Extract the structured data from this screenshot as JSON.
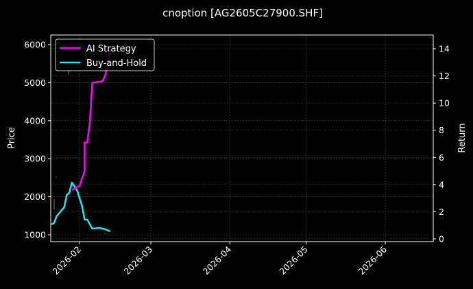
{
  "chart_data": {
    "type": "line",
    "title": "cnoption [AG2605C27900.SHF]",
    "xlabel": "",
    "ylabel": "Price",
    "y2label": "Return",
    "grid": true,
    "theme": "dark",
    "legend_position": "upper left",
    "x_ticks": [
      "2026-02",
      "2026-03",
      "2026-04",
      "2026-05",
      "2026-06"
    ],
    "y_ticks": [
      1000,
      2000,
      3000,
      4000,
      5000,
      6000
    ],
    "y2_ticks": [
      0,
      2,
      4,
      6,
      8,
      10,
      12,
      14
    ],
    "ylim": [
      830,
      6250
    ],
    "y2lim": [
      -0.2,
      15.0
    ],
    "xlim": [
      "2026-01-21",
      "2026-06-21"
    ],
    "series": [
      {
        "name": "AI Strategy",
        "axis": "right",
        "color": "#ff00ff",
        "x": [
          "2026-01-29",
          "2026-02-01",
          "2026-02-03",
          "2026-02-03",
          "2026-02-04",
          "2026-02-05",
          "2026-02-06",
          "2026-02-10",
          "2026-02-11",
          "2026-02-12",
          "2026-02-13"
        ],
        "values": [
          3.6,
          3.9,
          5.0,
          7.1,
          7.1,
          8.5,
          11.5,
          11.6,
          12.0,
          12.8,
          14.0
        ]
      },
      {
        "name": "Buy-and-Hold",
        "axis": "right",
        "color": "#22e5f0",
        "x": [
          "2026-01-21",
          "2026-01-22",
          "2026-01-23",
          "2026-01-26",
          "2026-01-27",
          "2026-01-28",
          "2026-01-29",
          "2026-01-31",
          "2026-02-02",
          "2026-02-03",
          "2026-02-04",
          "2026-02-06",
          "2026-02-09",
          "2026-02-11",
          "2026-02-13"
        ],
        "values": [
          1.06,
          1.17,
          1.67,
          2.33,
          3.24,
          3.39,
          4.15,
          3.59,
          2.43,
          1.42,
          1.42,
          0.76,
          0.81,
          0.71,
          0.56
        ]
      }
    ],
    "candles_note": "faint green/red price candles near 1800-2500 and ~5200 at late January"
  },
  "legend": {
    "items": [
      {
        "label": "AI Strategy",
        "color": "#ff00ff"
      },
      {
        "label": "Buy-and-Hold",
        "color": "#22e5f0"
      }
    ]
  }
}
